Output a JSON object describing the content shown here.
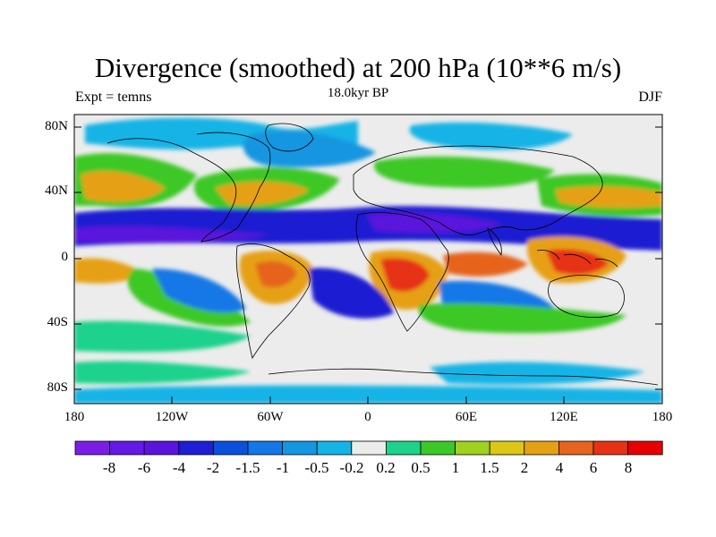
{
  "figure": {
    "title": "Divergence (smoothed) at 200 hPa (10**6 m/s)",
    "subtitle": "18.0kyr BP",
    "left_label": "Expt = temns",
    "right_label": "DJF"
  },
  "axes": {
    "lat_labels": [
      "80N",
      "40N",
      "0",
      "40S",
      "80S"
    ],
    "lon_labels": [
      "180",
      "120W",
      "60W",
      "0",
      "60E",
      "120E",
      "180"
    ]
  },
  "colorbar": {
    "labels": [
      "-8",
      "-6",
      "-4",
      "-2",
      "-1.5",
      "-1",
      "-0.5",
      "-0.2",
      "0.2",
      "0.5",
      "1",
      "1.5",
      "2",
      "4",
      "6",
      "8"
    ],
    "colors": [
      "#7a1ee6",
      "#6419e6",
      "#5a14dc",
      "#1e1ed2",
      "#0a50dc",
      "#1478e6",
      "#1496e0",
      "#14b4e6",
      "#ececec",
      "#1ed28c",
      "#3cc828",
      "#9ed21e",
      "#dcc814",
      "#e6a014",
      "#e6641e",
      "#e63214",
      "#e60000"
    ]
  },
  "palette": {
    "neutral": "#ececec",
    "ocean_bg": "#ececec"
  }
}
